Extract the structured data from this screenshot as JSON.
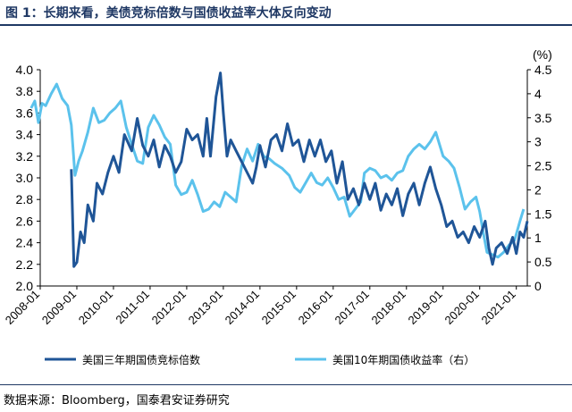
{
  "title": "图 1：长期来看，美债竞标倍数与国债收益率大体反向变动",
  "source": "数据来源：Bloomberg，国泰君安证券研究",
  "colors": {
    "series_dark": "#1f5597",
    "series_light": "#5bc2ec",
    "title": "#1f3864"
  },
  "chart_data": {
    "type": "line",
    "x_ticks": [
      "2008-01",
      "2009-01",
      "2010-01",
      "2011-01",
      "2012-01",
      "2013-01",
      "2014-01",
      "2015-01",
      "2016-01",
      "2017-01",
      "2018-01",
      "2019-01",
      "2020-01",
      "2021-01"
    ],
    "y_left": {
      "min": 2.0,
      "max": 4.0,
      "ticks": [
        "2.0",
        "2.2",
        "2.4",
        "2.6",
        "2.8",
        "3.0",
        "3.2",
        "3.4",
        "3.6",
        "3.8",
        "4.0"
      ]
    },
    "y_right": {
      "min": 0,
      "max": 4.5,
      "unit": "(%)",
      "ticks": [
        "0",
        "0.5",
        "1",
        "1.5",
        "2",
        "2.5",
        "3",
        "3.5",
        "4",
        "4.5"
      ]
    },
    "series": [
      {
        "name": "美国三年期国债竞标倍数",
        "axis": "left",
        "points": [
          [
            2008.85,
            3.08
          ],
          [
            2008.92,
            2.18
          ],
          [
            2009.0,
            2.22
          ],
          [
            2009.1,
            2.5
          ],
          [
            2009.2,
            2.4
          ],
          [
            2009.3,
            2.75
          ],
          [
            2009.45,
            2.6
          ],
          [
            2009.55,
            2.95
          ],
          [
            2009.7,
            2.85
          ],
          [
            2009.85,
            3.05
          ],
          [
            2010.0,
            3.2
          ],
          [
            2010.15,
            3.05
          ],
          [
            2010.3,
            3.4
          ],
          [
            2010.5,
            3.25
          ],
          [
            2010.65,
            3.55
          ],
          [
            2010.8,
            3.3
          ],
          [
            2010.95,
            3.2
          ],
          [
            2011.1,
            3.35
          ],
          [
            2011.25,
            3.1
          ],
          [
            2011.4,
            3.3
          ],
          [
            2011.55,
            3.2
          ],
          [
            2011.7,
            3.05
          ],
          [
            2011.85,
            3.15
          ],
          [
            2012.0,
            3.45
          ],
          [
            2012.15,
            3.35
          ],
          [
            2012.3,
            3.4
          ],
          [
            2012.45,
            3.2
          ],
          [
            2012.55,
            3.55
          ],
          [
            2012.65,
            3.2
          ],
          [
            2012.8,
            3.75
          ],
          [
            2012.92,
            3.97
          ],
          [
            2013.0,
            3.6
          ],
          [
            2013.1,
            3.2
          ],
          [
            2013.2,
            3.35
          ],
          [
            2013.35,
            3.25
          ],
          [
            2013.5,
            3.15
          ],
          [
            2013.65,
            3.05
          ],
          [
            2013.8,
            2.95
          ],
          [
            2013.9,
            3.1
          ],
          [
            2014.0,
            3.3
          ],
          [
            2014.15,
            3.1
          ],
          [
            2014.3,
            3.35
          ],
          [
            2014.45,
            3.4
          ],
          [
            2014.6,
            3.25
          ],
          [
            2014.75,
            3.5
          ],
          [
            2014.9,
            3.3
          ],
          [
            2015.05,
            3.35
          ],
          [
            2015.2,
            3.15
          ],
          [
            2015.35,
            3.35
          ],
          [
            2015.5,
            3.2
          ],
          [
            2015.65,
            3.35
          ],
          [
            2015.8,
            3.15
          ],
          [
            2015.95,
            3.25
          ],
          [
            2016.1,
            2.95
          ],
          [
            2016.25,
            3.15
          ],
          [
            2016.4,
            2.8
          ],
          [
            2016.55,
            2.9
          ],
          [
            2016.7,
            2.75
          ],
          [
            2016.85,
            2.95
          ],
          [
            2017.0,
            2.8
          ],
          [
            2017.15,
            2.95
          ],
          [
            2017.3,
            2.7
          ],
          [
            2017.45,
            2.85
          ],
          [
            2017.6,
            2.75
          ],
          [
            2017.75,
            2.9
          ],
          [
            2017.9,
            2.65
          ],
          [
            2018.05,
            2.85
          ],
          [
            2018.2,
            2.95
          ],
          [
            2018.35,
            2.75
          ],
          [
            2018.5,
            2.95
          ],
          [
            2018.65,
            3.1
          ],
          [
            2018.8,
            2.9
          ],
          [
            2018.95,
            2.75
          ],
          [
            2019.1,
            2.55
          ],
          [
            2019.25,
            2.6
          ],
          [
            2019.4,
            2.45
          ],
          [
            2019.55,
            2.5
          ],
          [
            2019.7,
            2.4
          ],
          [
            2019.85,
            2.55
          ],
          [
            2020.0,
            2.45
          ],
          [
            2020.15,
            2.6
          ],
          [
            2020.25,
            2.35
          ],
          [
            2020.35,
            2.2
          ],
          [
            2020.45,
            2.35
          ],
          [
            2020.6,
            2.4
          ],
          [
            2020.75,
            2.3
          ],
          [
            2020.9,
            2.45
          ],
          [
            2021.0,
            2.3
          ],
          [
            2021.1,
            2.5
          ],
          [
            2021.2,
            2.45
          ],
          [
            2021.3,
            2.6
          ]
        ]
      },
      {
        "name": "美国10年期国债收益率（右）",
        "axis": "right",
        "points": [
          [
            2007.75,
            3.7
          ],
          [
            2007.85,
            3.85
          ],
          [
            2007.95,
            3.4
          ],
          [
            2008.05,
            3.8
          ],
          [
            2008.15,
            3.75
          ],
          [
            2008.3,
            4.0
          ],
          [
            2008.45,
            4.2
          ],
          [
            2008.6,
            3.9
          ],
          [
            2008.75,
            3.75
          ],
          [
            2008.85,
            3.35
          ],
          [
            2008.95,
            2.3
          ],
          [
            2009.05,
            2.6
          ],
          [
            2009.15,
            2.8
          ],
          [
            2009.3,
            3.2
          ],
          [
            2009.45,
            3.7
          ],
          [
            2009.6,
            3.4
          ],
          [
            2009.75,
            3.45
          ],
          [
            2009.9,
            3.6
          ],
          [
            2010.05,
            3.7
          ],
          [
            2010.2,
            3.85
          ],
          [
            2010.35,
            3.3
          ],
          [
            2010.5,
            2.95
          ],
          [
            2010.65,
            2.6
          ],
          [
            2010.8,
            2.55
          ],
          [
            2010.95,
            3.3
          ],
          [
            2011.1,
            3.55
          ],
          [
            2011.25,
            3.35
          ],
          [
            2011.4,
            3.1
          ],
          [
            2011.55,
            2.95
          ],
          [
            2011.7,
            2.1
          ],
          [
            2011.85,
            1.9
          ],
          [
            2012.0,
            1.95
          ],
          [
            2012.15,
            2.2
          ],
          [
            2012.3,
            1.9
          ],
          [
            2012.45,
            1.55
          ],
          [
            2012.6,
            1.6
          ],
          [
            2012.75,
            1.75
          ],
          [
            2012.9,
            1.65
          ],
          [
            2013.05,
            1.95
          ],
          [
            2013.2,
            1.85
          ],
          [
            2013.35,
            1.75
          ],
          [
            2013.5,
            2.5
          ],
          [
            2013.65,
            2.85
          ],
          [
            2013.8,
            2.6
          ],
          [
            2013.95,
            2.95
          ],
          [
            2014.1,
            2.7
          ],
          [
            2014.25,
            2.65
          ],
          [
            2014.4,
            2.55
          ],
          [
            2014.6,
            2.45
          ],
          [
            2014.8,
            2.3
          ],
          [
            2014.95,
            2.05
          ],
          [
            2015.1,
            1.95
          ],
          [
            2015.25,
            2.15
          ],
          [
            2015.4,
            2.35
          ],
          [
            2015.55,
            2.15
          ],
          [
            2015.7,
            2.1
          ],
          [
            2015.85,
            2.25
          ],
          [
            2016.0,
            2.05
          ],
          [
            2016.15,
            1.8
          ],
          [
            2016.3,
            1.85
          ],
          [
            2016.45,
            1.45
          ],
          [
            2016.6,
            1.6
          ],
          [
            2016.75,
            1.75
          ],
          [
            2016.85,
            2.35
          ],
          [
            2017.0,
            2.45
          ],
          [
            2017.15,
            2.4
          ],
          [
            2017.3,
            2.25
          ],
          [
            2017.45,
            2.3
          ],
          [
            2017.6,
            2.2
          ],
          [
            2017.75,
            2.35
          ],
          [
            2017.9,
            2.4
          ],
          [
            2018.05,
            2.7
          ],
          [
            2018.2,
            2.85
          ],
          [
            2018.35,
            2.95
          ],
          [
            2018.5,
            2.85
          ],
          [
            2018.65,
            3.0
          ],
          [
            2018.8,
            3.2
          ],
          [
            2018.9,
            2.95
          ],
          [
            2019.0,
            2.7
          ],
          [
            2019.15,
            2.6
          ],
          [
            2019.3,
            2.45
          ],
          [
            2019.45,
            2.05
          ],
          [
            2019.6,
            1.6
          ],
          [
            2019.75,
            1.75
          ],
          [
            2019.9,
            1.85
          ],
          [
            2020.0,
            1.55
          ],
          [
            2020.1,
            1.1
          ],
          [
            2020.2,
            0.7
          ],
          [
            2020.35,
            0.65
          ],
          [
            2020.5,
            0.6
          ],
          [
            2020.65,
            0.7
          ],
          [
            2020.8,
            0.85
          ],
          [
            2020.95,
            0.95
          ],
          [
            2021.1,
            1.35
          ],
          [
            2021.2,
            1.6
          ]
        ]
      }
    ],
    "legend_position": "bottom"
  }
}
